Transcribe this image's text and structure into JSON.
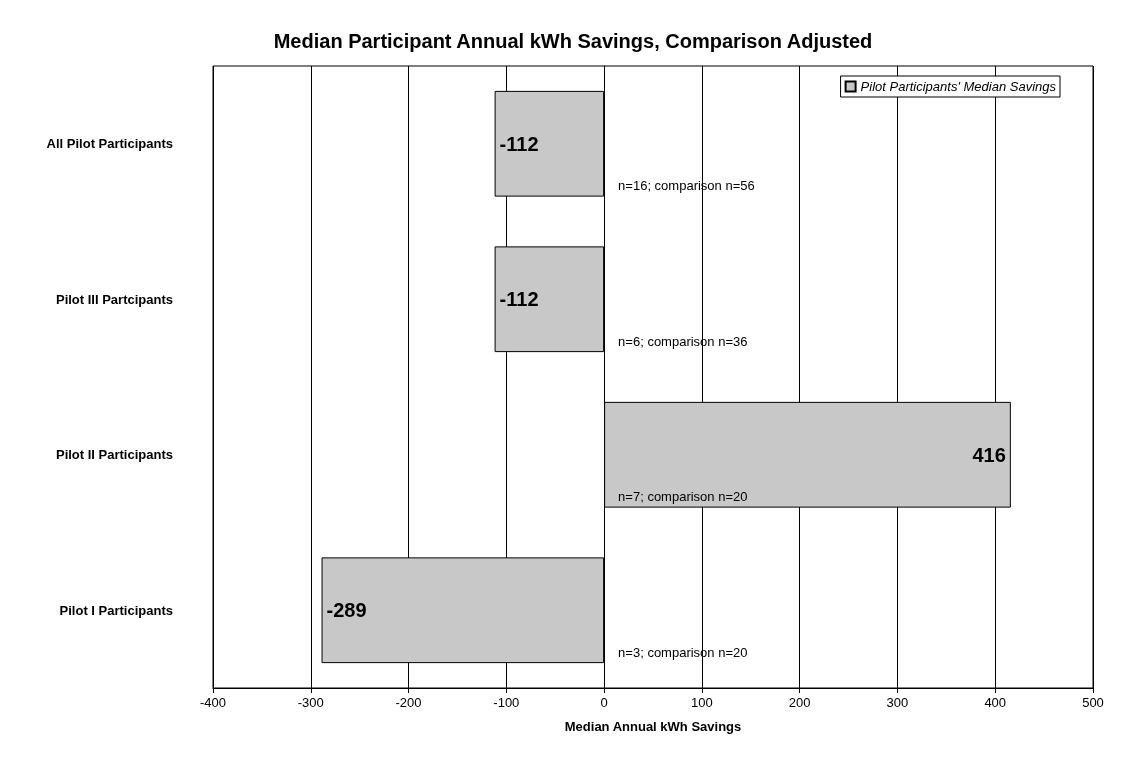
{
  "chart_data": {
    "type": "bar",
    "orientation": "horizontal",
    "title": "Median Participant Annual kWh Savings, Comparison Adjusted",
    "xlabel": "Median Annual kWh Savings",
    "categories": [
      "All Pilot Participants",
      "Pilot III Partcipants",
      "Pilot II Participants",
      "Pilot I Participants"
    ],
    "series": [
      {
        "name": "Pilot Participants' Median Savings",
        "color": "#c8c8c8",
        "values": [
          -112,
          -112,
          416,
          -289
        ]
      }
    ],
    "xlim": [
      -400,
      500
    ],
    "xticks": [
      -400,
      -300,
      -200,
      -100,
      0,
      100,
      200,
      300,
      400,
      500
    ],
    "grid": "x",
    "legend": "top right",
    "data_labels": true,
    "annotations": [
      "n=16; comparison n=56",
      "n=6; comparison n=36",
      "n=7; comparison n=20",
      "n=3; comparison n=20"
    ]
  }
}
